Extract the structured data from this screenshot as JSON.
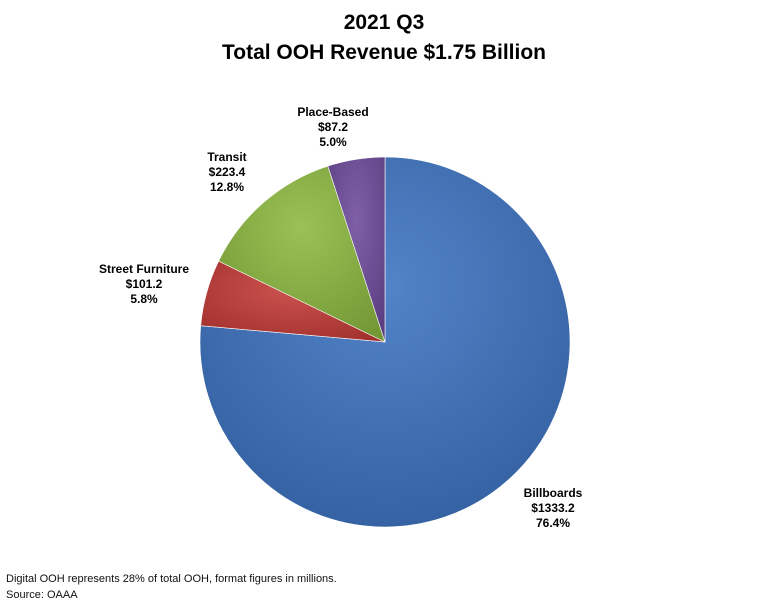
{
  "chart_data": {
    "type": "pie",
    "title": "2021 Q3",
    "subtitle": "Total OOH Revenue $1.75 Billion",
    "slices": [
      {
        "name": "Billboards",
        "value": 1333.2,
        "value_label": "$1333.2",
        "percent_label": "76.4%",
        "color": "#3b72c0"
      },
      {
        "name": "Street Furniture",
        "value": 101.2,
        "value_label": "$101.2",
        "percent_label": "5.8%",
        "color": "#c43a37"
      },
      {
        "name": "Transit",
        "value": 223.4,
        "value_label": "$223.4",
        "percent_label": "12.8%",
        "color": "#8cb83f"
      },
      {
        "name": "Place-Based",
        "value": 87.2,
        "value_label": "$87.2",
        "percent_label": "5.0%",
        "color": "#6e4a9c"
      }
    ]
  },
  "footer": {
    "note": "Digital OOH represents 28% of total OOH, format figures in millions.",
    "source": "Source: OAAA"
  }
}
